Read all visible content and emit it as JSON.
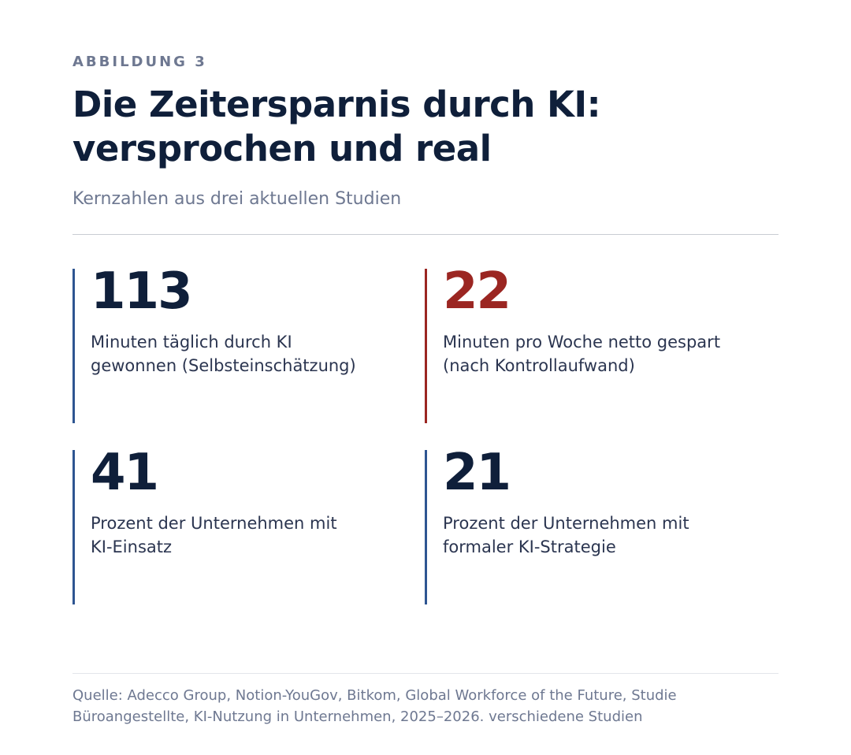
{
  "figure": {
    "kicker": "ABBILDUNG 3",
    "title_line1": "Die Zeitersparnis durch KI:",
    "title_line2": "versprochen und real",
    "subtitle": "Kernzahlen aus drei aktuellen Studien"
  },
  "stats": [
    {
      "value": "113",
      "desc_line1": "Minuten täglich durch KI",
      "desc_line2": "gewonnen (Selbsteinschätzung)",
      "accent": "#2e5591"
    },
    {
      "value": "22",
      "desc_line1": "Minuten pro Woche netto gespart",
      "desc_line2": "(nach Kontrollaufwand)",
      "accent": "#9b2622"
    },
    {
      "value": "41",
      "desc_line1": "Prozent der Unternehmen mit",
      "desc_line2": "KI-Einsatz",
      "accent": "#2e5591"
    },
    {
      "value": "21",
      "desc_line1": "Prozent der Unternehmen mit",
      "desc_line2": "formaler KI-Strategie",
      "accent": "#2e5591"
    }
  ],
  "source": {
    "line1": "Quelle: Adecco Group, Notion-YouGov, Bitkom, Global Workforce of the Future, Studie",
    "line2": "Büroangestellte, KI-Nutzung in Unternehmen, 2025–2026. verschiedene Studien"
  }
}
